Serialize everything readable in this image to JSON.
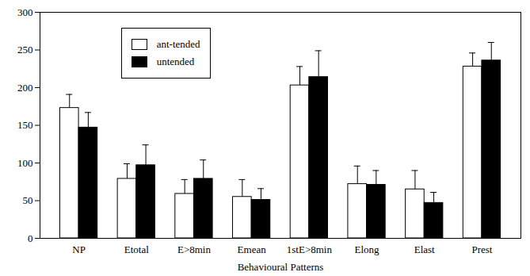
{
  "chart_data": {
    "type": "bar",
    "x_label": "Behavioural Patterns",
    "categories": [
      "NP",
      "Etotal",
      "E>8min",
      "Emean",
      "1stE>8min",
      "Elong",
      "Elast",
      "Prest"
    ],
    "series": [
      {
        "name": "ant-tended",
        "color": "#ffffff",
        "values": [
          173,
          79,
          59,
          55,
          203,
          72,
          65,
          228
        ],
        "errors": [
          18,
          20,
          19,
          23,
          25,
          24,
          25,
          18
        ]
      },
      {
        "name": "untended",
        "color": "#000000",
        "values": [
          147,
          97,
          79,
          51,
          214,
          71,
          47,
          236
        ],
        "errors": [
          20,
          27,
          25,
          15,
          35,
          19,
          14,
          24
        ]
      }
    ],
    "ylim": [
      0,
      300
    ],
    "yticks": [
      0,
      50,
      100,
      150,
      200,
      250,
      300
    ],
    "grid": false,
    "legend": "upper left"
  }
}
